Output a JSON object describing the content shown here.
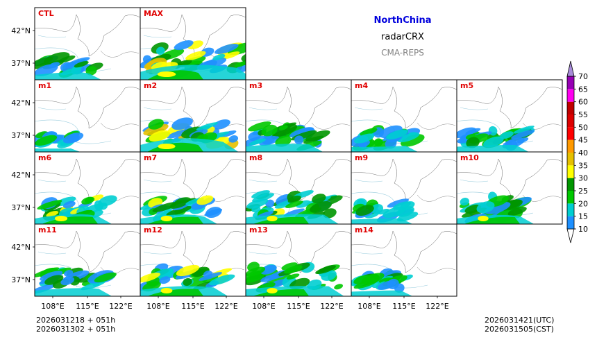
{
  "chart_data": {
    "type": "heatmap",
    "title_region": "NorthChina",
    "title_variable": "radarCRX",
    "title_model": "CMA-REPS",
    "region_color": "#0000dd",
    "panels": [
      {
        "label": "CTL",
        "intensity": 0.45,
        "spread": 0.5
      },
      {
        "label": "MAX",
        "intensity": 0.95,
        "spread": 0.95
      },
      {
        "label": "m1",
        "intensity": 0.15,
        "spread": 0.3
      },
      {
        "label": "m2",
        "intensity": 0.9,
        "spread": 0.8
      },
      {
        "label": "m3",
        "intensity": 0.45,
        "spread": 0.6
      },
      {
        "label": "m4",
        "intensity": 0.25,
        "spread": 0.5
      },
      {
        "label": "m5",
        "intensity": 0.35,
        "spread": 0.55
      },
      {
        "label": "m6",
        "intensity": 0.65,
        "spread": 0.6
      },
      {
        "label": "m7",
        "intensity": 0.6,
        "spread": 0.6
      },
      {
        "label": "m8",
        "intensity": 0.55,
        "spread": 0.75
      },
      {
        "label": "m9",
        "intensity": 0.3,
        "spread": 0.45
      },
      {
        "label": "m10",
        "intensity": 0.55,
        "spread": 0.6
      },
      {
        "label": "m11",
        "intensity": 0.45,
        "spread": 0.6
      },
      {
        "label": "m12",
        "intensity": 0.6,
        "spread": 0.7
      },
      {
        "label": "m13",
        "intensity": 0.55,
        "spread": 0.8
      },
      {
        "label": "m14",
        "intensity": 0.3,
        "spread": 0.45
      }
    ],
    "lat_ticks": [
      "42°N",
      "37°N"
    ],
    "lon_ticks": [
      "108°E",
      "115°E",
      "122°E"
    ],
    "colorbar": {
      "levels": [
        10,
        15,
        20,
        25,
        30,
        35,
        40,
        45,
        50,
        55,
        60,
        65,
        70
      ],
      "colors": [
        "#1e90ff",
        "#00ced1",
        "#00c800",
        "#009600",
        "#ffff00",
        "#e6c000",
        "#ff9900",
        "#ff0000",
        "#dd0000",
        "#c00000",
        "#ff00f0",
        "#9600b4",
        "#a78bd9"
      ],
      "extend": "both"
    }
  },
  "footer": {
    "init_utc": "2026031218  +  051h",
    "init_cst": "2026031302  +  051h",
    "valid_utc": "2026031421(UTC)",
    "valid_cst": "2026031505(CST)"
  }
}
